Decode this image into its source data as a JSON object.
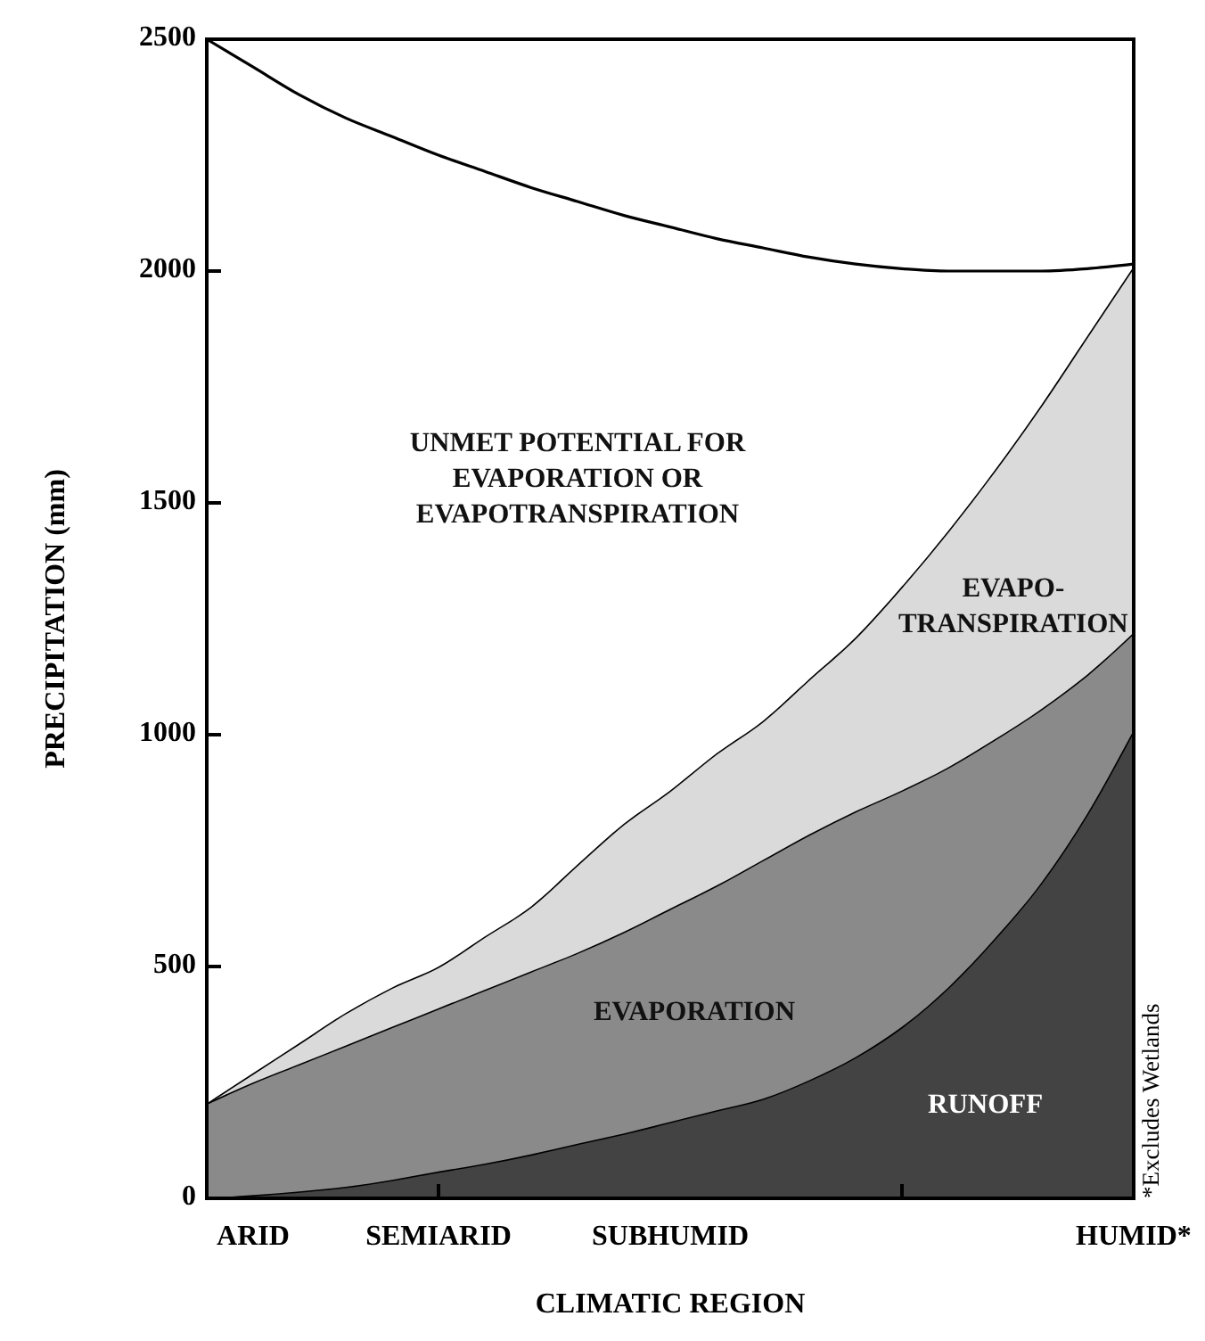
{
  "chart_data": {
    "type": "area",
    "stacked": true,
    "xlabel": "CLIMATIC REGION",
    "ylabel": "PRECIPITATION (mm)",
    "categories": [
      null,
      "ARID",
      null,
      null,
      null,
      "SEMIARID",
      null,
      null,
      null,
      null,
      "SUBHUMID",
      null,
      null,
      null,
      null,
      null,
      null,
      null,
      null,
      null,
      "HUMID*"
    ],
    "ylim": [
      0,
      2500
    ],
    "yticks": [
      0,
      500,
      1000,
      1500,
      2000,
      2500
    ],
    "series": [
      {
        "name": "RUNOFF",
        "color": "#434343",
        "values": [
          0,
          7,
          15,
          25,
          40,
          58,
          75,
          95,
          118,
          140,
          165,
          190,
          215,
          255,
          305,
          370,
          455,
          560,
          680,
          830,
          1010
        ]
      },
      {
        "name": "EVAPORATION",
        "color": "#8a8a8a",
        "values": [
          205,
          243,
          275,
          305,
          330,
          352,
          375,
          395,
          412,
          435,
          460,
          485,
          515,
          530,
          530,
          510,
          475,
          430,
          375,
          300,
          210
        ]
      },
      {
        "name": "EVAPO-\nTRANSPIRATION",
        "color": "#dadada",
        "values": [
          0,
          20,
          45,
          70,
          85,
          90,
          115,
          140,
          190,
          233,
          255,
          285,
          300,
          335,
          375,
          440,
          510,
          580,
          655,
          730,
          790
        ]
      },
      {
        "name": "UNMET POTENTIAL FOR\nEVAPORATION OR\nEVAPOTRANSPIRATION",
        "color": "#ffffff",
        "values": [
          2295,
          2170,
          2045,
          1930,
          1835,
          1750,
          1650,
          1550,
          1430,
          1312,
          1215,
          1110,
          1020,
          910,
          805,
          685,
          560,
          430,
          290,
          145,
          5
        ]
      }
    ],
    "annotations": [
      "*Excludes Wetlands"
    ],
    "grid": false
  }
}
